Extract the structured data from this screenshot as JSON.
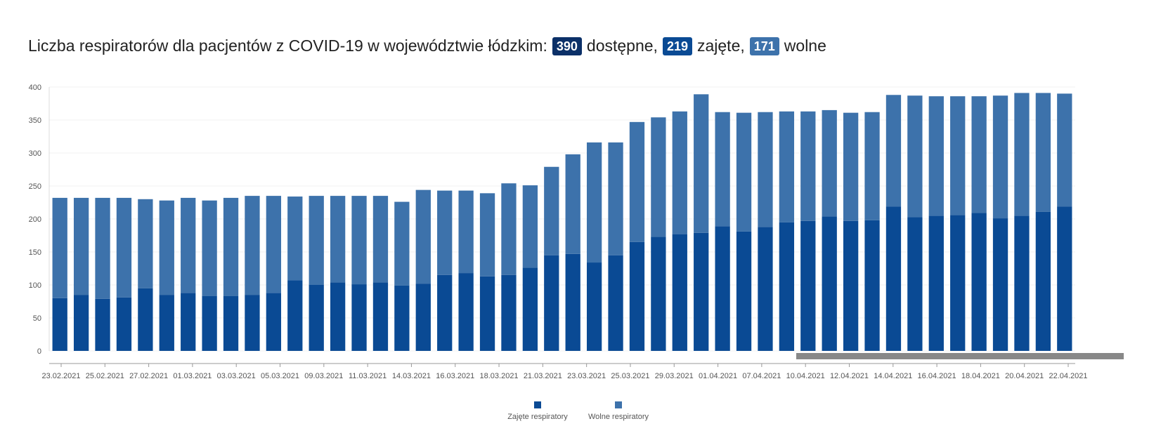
{
  "title": {
    "prefix": "Liczba respiratorów dla pacjentów z COVID-19 w województwie łódzkim:",
    "available": "390",
    "available_label": "dostępne,",
    "occupied": "219",
    "occupied_label": "zajęte,",
    "free": "171",
    "free_label": "wolne"
  },
  "colors": {
    "occupied": "#0a4a94",
    "free": "#3d72ab",
    "available_badge": "#0b3068",
    "occupied_badge": "#0a4a94",
    "free_badge": "#3d72ab",
    "scrollbar": "#888888"
  },
  "legend": {
    "occupied": "Zajęte respiratory",
    "free": "Wolne respiratory"
  },
  "chart_data": {
    "type": "bar",
    "stacked": true,
    "ylim": [
      0,
      400
    ],
    "yticks": [
      0,
      50,
      100,
      150,
      200,
      250,
      300,
      350,
      400
    ],
    "grid": true,
    "legend_position": "bottom",
    "xtick_labels": [
      "23.02.2021",
      "25.02.2021",
      "27.02.2021",
      "01.03.2021",
      "03.03.2021",
      "05.03.2021",
      "09.03.2021",
      "11.03.2021",
      "14.03.2021",
      "16.03.2021",
      "18.03.2021",
      "21.03.2021",
      "23.03.2021",
      "25.03.2021",
      "29.03.2021",
      "01.04.2021",
      "07.04.2021",
      "10.04.2021",
      "12.04.2021",
      "14.04.2021",
      "16.04.2021",
      "18.04.2021",
      "20.04.2021",
      "22.04.2021"
    ],
    "series": [
      {
        "name": "Zajęte respiratory",
        "values": [
          80,
          85,
          79,
          81,
          95,
          85,
          88,
          83,
          83,
          85,
          88,
          107,
          100,
          104,
          101,
          104,
          99,
          102,
          115,
          118,
          113,
          115,
          126,
          145,
          147,
          134,
          145,
          165,
          173,
          177,
          179,
          189,
          181,
          188,
          195,
          197,
          204,
          197,
          198,
          219,
          203,
          205,
          206,
          209,
          201,
          205,
          211,
          219
        ]
      },
      {
        "name": "Wolne respiratory",
        "values": [
          152,
          147,
          153,
          151,
          135,
          143,
          144,
          145,
          149,
          150,
          147,
          127,
          135,
          131,
          134,
          131,
          127,
          142,
          128,
          125,
          126,
          139,
          125,
          134,
          151,
          182,
          171,
          182,
          181,
          186,
          210,
          173,
          180,
          174,
          168,
          166,
          161,
          164,
          164,
          169,
          184,
          181,
          180,
          177,
          186,
          186,
          180,
          171
        ]
      }
    ]
  }
}
